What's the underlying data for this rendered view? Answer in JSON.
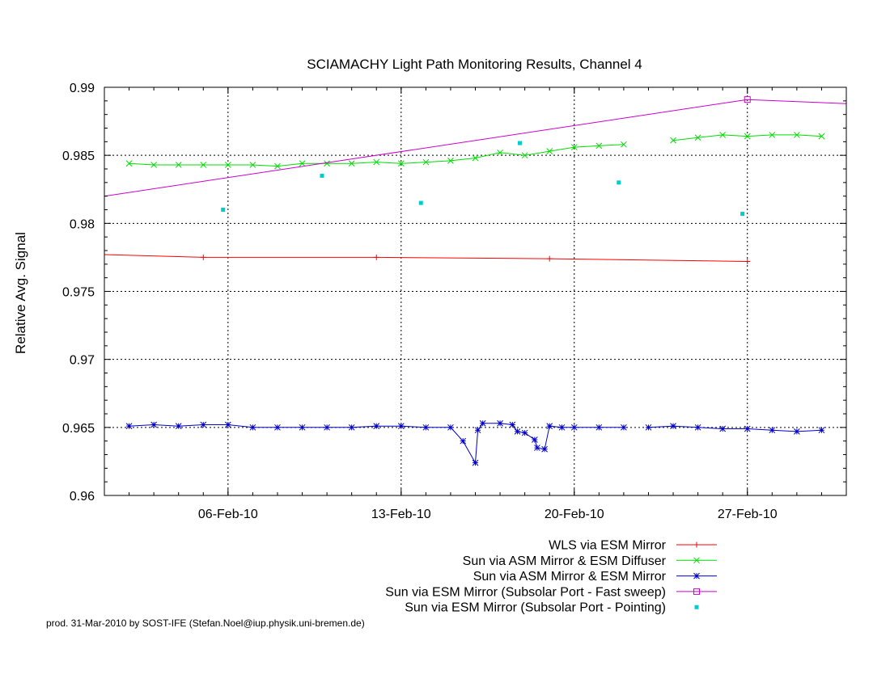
{
  "chart_data": {
    "type": "line",
    "title": "SCIAMACHY Light Path Monitoring Results, Channel 4",
    "xlabel": "",
    "ylabel": "Relative Avg. Signal",
    "ylim": [
      0.96,
      0.99
    ],
    "yticks": [
      0.96,
      0.965,
      0.97,
      0.975,
      0.98,
      0.985,
      0.99
    ],
    "ytick_labels": [
      "0.96",
      "0.965",
      "0.97",
      "0.975",
      "0.98",
      "0.985",
      "0.99"
    ],
    "xlim": [
      "2010-02-01",
      "2010-03-03"
    ],
    "xticks": [
      "2010-02-06",
      "2010-02-13",
      "2010-02-20",
      "2010-02-27"
    ],
    "xtick_labels": [
      "06-Feb-10",
      "13-Feb-10",
      "20-Feb-10",
      "27-Feb-10"
    ],
    "grid": true,
    "legend_position": "bottom-right",
    "footer": "prod. 31-Mar-2010 by SOST-IFE (Stefan.Noel@iup.physik.uni-bremen.de)",
    "series": [
      {
        "name": "WLS via ESM Mirror",
        "color": "#ff0000",
        "marker": "plus",
        "style": "line",
        "points": [
          [
            "2010-02-01",
            0.9777
          ],
          [
            "2010-02-05",
            0.9775
          ],
          [
            "2010-02-12",
            0.9775
          ],
          [
            "2010-02-19",
            0.9774
          ],
          [
            "2010-02-27",
            0.9772
          ]
        ],
        "marker_points": [
          [
            "2010-02-05",
            0.9775
          ],
          [
            "2010-02-12",
            0.9775
          ],
          [
            "2010-02-19",
            0.9774
          ],
          [
            "2010-02-27",
            0.9772
          ]
        ]
      },
      {
        "name": "Sun via ASM Mirror & ESM Diffuser",
        "color": "#00dd00",
        "marker": "cross",
        "style": "line",
        "segments": [
          [
            [
              "2010-02-02",
              0.9844
            ],
            [
              "2010-02-03",
              0.9843
            ],
            [
              "2010-02-04",
              0.9843
            ],
            [
              "2010-02-05",
              0.9843
            ],
            [
              "2010-02-06",
              0.9843
            ],
            [
              "2010-02-07",
              0.9843
            ],
            [
              "2010-02-08",
              0.9842
            ],
            [
              "2010-02-09",
              0.9844
            ],
            [
              "2010-02-10",
              0.9844
            ],
            [
              "2010-02-11",
              0.9844
            ],
            [
              "2010-02-12",
              0.9845
            ],
            [
              "2010-02-13",
              0.9844
            ],
            [
              "2010-02-14",
              0.9845
            ],
            [
              "2010-02-15",
              0.9846
            ],
            [
              "2010-02-16",
              0.9848
            ],
            [
              "2010-02-17",
              0.9852
            ],
            [
              "2010-02-18",
              0.985
            ],
            [
              "2010-02-19",
              0.9853
            ],
            [
              "2010-02-20",
              0.9856
            ],
            [
              "2010-02-21",
              0.9857
            ],
            [
              "2010-02-22",
              0.9858
            ]
          ],
          [
            [
              "2010-02-24",
              0.9861
            ],
            [
              "2010-02-25",
              0.9863
            ],
            [
              "2010-02-26",
              0.9865
            ],
            [
              "2010-02-27",
              0.9864
            ],
            [
              "2010-02-28",
              0.9865
            ],
            [
              "2010-03-01",
              0.9865
            ],
            [
              "2010-03-02",
              0.9864
            ]
          ]
        ]
      },
      {
        "name": "Sun via ASM Mirror & ESM Mirror",
        "color": "#0000cc",
        "marker": "star",
        "style": "line",
        "segments": [
          [
            [
              "2010-02-02",
              0.9651
            ],
            [
              "2010-02-03",
              0.9652
            ],
            [
              "2010-02-04",
              0.9651
            ],
            [
              "2010-02-05",
              0.9652
            ],
            [
              "2010-02-06",
              0.9652
            ],
            [
              "2010-02-07",
              0.965
            ],
            [
              "2010-02-08",
              0.965
            ],
            [
              "2010-02-09",
              0.965
            ],
            [
              "2010-02-10",
              0.965
            ],
            [
              "2010-02-11",
              0.965
            ],
            [
              "2010-02-12",
              0.9651
            ],
            [
              "2010-02-13",
              0.9651
            ],
            [
              "2010-02-14",
              0.965
            ],
            [
              "2010-02-15",
              0.965
            ],
            [
              "2010-02-15.5",
              0.964
            ],
            [
              "2010-02-16",
              0.9624
            ],
            [
              "2010-02-16.1",
              0.9648
            ],
            [
              "2010-02-16.3",
              0.9653
            ],
            [
              "2010-02-17",
              0.9653
            ],
            [
              "2010-02-17.5",
              0.9652
            ],
            [
              "2010-02-17.7",
              0.9647
            ],
            [
              "2010-02-18",
              0.9646
            ],
            [
              "2010-02-18.4",
              0.9641
            ],
            [
              "2010-02-18.5",
              0.9635
            ],
            [
              "2010-02-18.8",
              0.9634
            ],
            [
              "2010-02-19",
              0.9651
            ],
            [
              "2010-02-19.5",
              0.965
            ],
            [
              "2010-02-20",
              0.965
            ],
            [
              "2010-02-21",
              0.965
            ],
            [
              "2010-02-22",
              0.965
            ]
          ],
          [
            [
              "2010-02-23",
              0.965
            ],
            [
              "2010-02-24",
              0.9651
            ],
            [
              "2010-02-25",
              0.965
            ],
            [
              "2010-02-26",
              0.9649
            ],
            [
              "2010-02-27",
              0.9649
            ],
            [
              "2010-02-28",
              0.9648
            ],
            [
              "2010-03-01",
              0.9647
            ],
            [
              "2010-03-02",
              0.9648
            ]
          ]
        ]
      },
      {
        "name": "Sun via ESM Mirror (Subsolar Port - Fast sweep)",
        "color": "#cc00cc",
        "marker": "open-square",
        "style": "line",
        "points": [
          [
            "2010-02-01",
            0.982
          ],
          [
            "2010-02-27",
            0.9891
          ],
          [
            "2010-03-03",
            0.9888
          ]
        ],
        "marker_points": [
          [
            "2010-02-27",
            0.9891
          ]
        ]
      },
      {
        "name": "Sun via ESM Mirror (Subsolar Port - Pointing)",
        "color": "#00cccc",
        "marker": "filled-square",
        "style": "points",
        "points": [
          [
            "2010-02-05.8",
            0.981
          ],
          [
            "2010-02-09.8",
            0.9835
          ],
          [
            "2010-02-13.8",
            0.9815
          ],
          [
            "2010-02-17.8",
            0.9859
          ],
          [
            "2010-02-21.8",
            0.983
          ],
          [
            "2010-02-26.8",
            0.9807
          ]
        ]
      }
    ]
  }
}
